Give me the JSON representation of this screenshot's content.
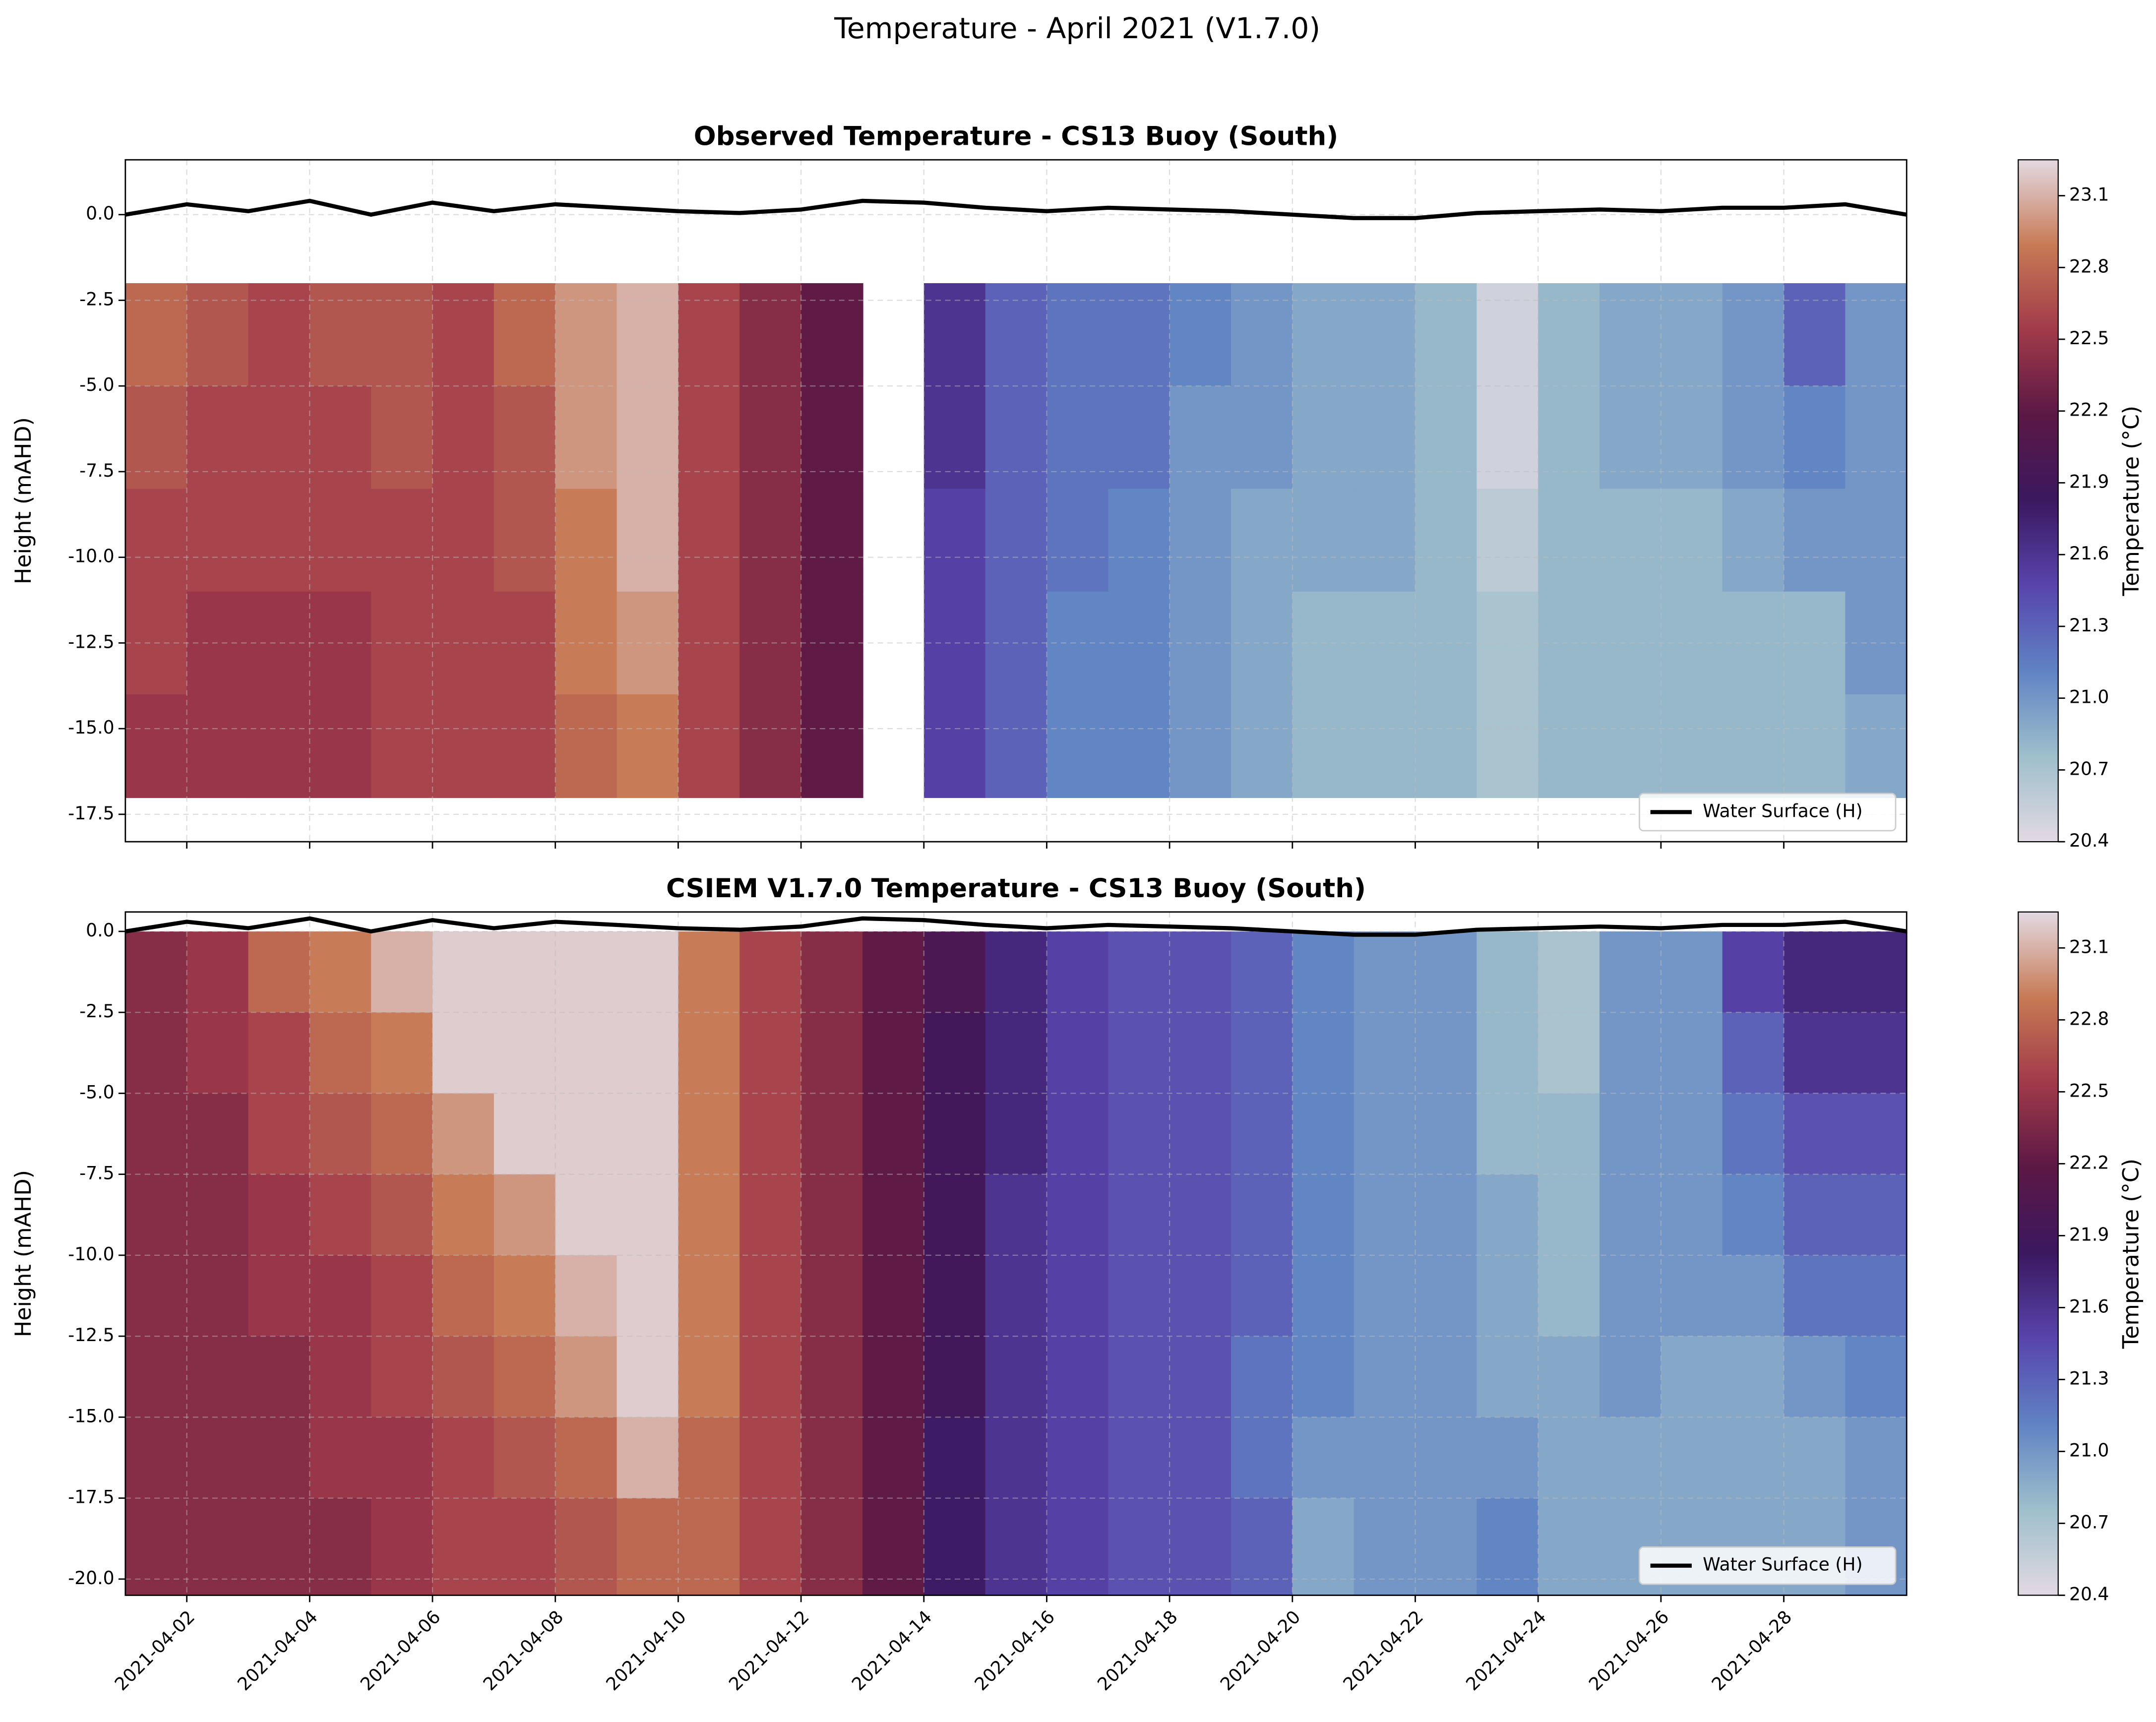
{
  "title": "Temperature - April 2021 (V1.7.0)",
  "chart_data": [
    {
      "type": "heatmap",
      "title": "Observed Temperature - CS13 Buoy (South)",
      "ylabel": "Height (mAHD)",
      "x": [
        "2021-04-01",
        "2021-04-02",
        "2021-04-03",
        "2021-04-04",
        "2021-04-05",
        "2021-04-06",
        "2021-04-07",
        "2021-04-08",
        "2021-04-09",
        "2021-04-10",
        "2021-04-11",
        "2021-04-12",
        "2021-04-13",
        "2021-04-14",
        "2021-04-15",
        "2021-04-16",
        "2021-04-17",
        "2021-04-18",
        "2021-04-19",
        "2021-04-20",
        "2021-04-21",
        "2021-04-22",
        "2021-04-23",
        "2021-04-24",
        "2021-04-25",
        "2021-04-26",
        "2021-04-27",
        "2021-04-28",
        "2021-04-29"
      ],
      "y_edges": [
        -2,
        -5,
        -8,
        -11,
        -14,
        -17
      ],
      "z": [
        [
          22.8,
          22.7,
          22.6,
          22.7,
          22.7,
          22.6,
          22.8,
          23.0,
          23.1,
          22.6,
          22.4,
          22.2,
          null,
          21.6,
          21.3,
          21.2,
          21.2,
          21.1,
          21.0,
          20.9,
          20.9,
          20.8,
          20.5,
          20.8,
          20.9,
          20.9,
          21.0,
          21.3,
          21.0
        ],
        [
          22.7,
          22.6,
          22.6,
          22.6,
          22.7,
          22.6,
          22.7,
          23.0,
          23.1,
          22.6,
          22.4,
          22.2,
          null,
          21.6,
          21.3,
          21.2,
          21.2,
          21.0,
          21.0,
          20.9,
          20.9,
          20.8,
          20.5,
          20.8,
          20.9,
          20.9,
          21.0,
          21.1,
          21.0
        ],
        [
          22.6,
          22.6,
          22.6,
          22.6,
          22.6,
          22.6,
          22.7,
          22.9,
          23.1,
          22.6,
          22.4,
          22.2,
          null,
          21.5,
          21.3,
          21.2,
          21.1,
          21.0,
          20.9,
          20.9,
          20.9,
          20.8,
          20.6,
          20.8,
          20.8,
          20.8,
          20.9,
          21.0,
          21.0
        ],
        [
          22.6,
          22.5,
          22.5,
          22.5,
          22.6,
          22.6,
          22.6,
          22.9,
          23.0,
          22.6,
          22.4,
          22.2,
          null,
          21.5,
          21.3,
          21.1,
          21.1,
          21.0,
          20.9,
          20.8,
          20.8,
          20.8,
          20.7,
          20.8,
          20.8,
          20.8,
          20.8,
          20.8,
          21.0
        ],
        [
          22.5,
          22.5,
          22.5,
          22.5,
          22.6,
          22.6,
          22.6,
          22.8,
          22.9,
          22.6,
          22.4,
          22.2,
          null,
          21.5,
          21.3,
          21.1,
          21.1,
          21.0,
          20.9,
          20.8,
          20.8,
          20.8,
          20.7,
          20.8,
          20.8,
          20.8,
          20.8,
          20.8,
          20.9
        ]
      ],
      "xlim": [
        "2021-04-01",
        "2021-04-30"
      ],
      "xticks": [
        "2021-04-02",
        "2021-04-04",
        "2021-04-06",
        "2021-04-08",
        "2021-04-10",
        "2021-04-12",
        "2021-04-14",
        "2021-04-16",
        "2021-04-18",
        "2021-04-20",
        "2021-04-22",
        "2021-04-24",
        "2021-04-26",
        "2021-04-28"
      ],
      "ylim": [
        -18.3,
        1.6
      ],
      "yticks": [
        {
          "value": 0,
          "label": "0.0"
        },
        -2.5,
        {
          "value": -5,
          "label": "-5.0"
        },
        -7.5,
        {
          "value": -10,
          "label": "-10.0"
        },
        -12.5,
        {
          "value": -15,
          "label": "-15.0"
        },
        -17.5
      ],
      "clim": [
        20.4,
        23.25
      ],
      "cticks": [
        20.4,
        20.7,
        {
          "value": 21,
          "label": "21.0"
        },
        21.3,
        21.6,
        21.9,
        22.2,
        22.5,
        22.8,
        23.1
      ],
      "clabel": "Temperature (°C)",
      "colormap": [
        "#e2d9e2",
        "#9ebfcb",
        "#6083c4",
        "#5845ad",
        "#3b1860",
        "#5b1845",
        "#a13a4a",
        "#c77a55",
        "#e2d9e2"
      ],
      "grid": true,
      "legend": "lower right",
      "surface": {
        "name": "Water Surface (H)",
        "color": "#000000",
        "x": [
          "2021-04-01",
          "2021-04-02",
          "2021-04-03",
          "2021-04-04",
          "2021-04-05",
          "2021-04-06",
          "2021-04-07",
          "2021-04-08",
          "2021-04-09",
          "2021-04-10",
          "2021-04-11",
          "2021-04-12",
          "2021-04-13",
          "2021-04-14",
          "2021-04-15",
          "2021-04-16",
          "2021-04-17",
          "2021-04-18",
          "2021-04-19",
          "2021-04-20",
          "2021-04-21",
          "2021-04-22",
          "2021-04-23",
          "2021-04-24",
          "2021-04-25",
          "2021-04-26",
          "2021-04-27",
          "2021-04-28",
          "2021-04-29",
          "2021-04-30"
        ],
        "values": [
          0.0,
          0.3,
          0.1,
          0.4,
          0.0,
          0.35,
          0.1,
          0.3,
          0.2,
          0.1,
          0.05,
          0.15,
          0.4,
          0.35,
          0.2,
          0.1,
          0.2,
          0.15,
          0.1,
          0.0,
          -0.1,
          -0.1,
          0.05,
          0.1,
          0.15,
          0.1,
          0.2,
          0.2,
          0.3,
          0.0
        ]
      }
    },
    {
      "type": "heatmap",
      "title": "CSIEM V1.7.0 Temperature - CS13 Buoy (South)",
      "ylabel": "Height (mAHD)",
      "x": [
        "2021-04-01",
        "2021-04-02",
        "2021-04-03",
        "2021-04-04",
        "2021-04-05",
        "2021-04-06",
        "2021-04-07",
        "2021-04-08",
        "2021-04-09",
        "2021-04-10",
        "2021-04-11",
        "2021-04-12",
        "2021-04-13",
        "2021-04-14",
        "2021-04-15",
        "2021-04-16",
        "2021-04-17",
        "2021-04-18",
        "2021-04-19",
        "2021-04-20",
        "2021-04-21",
        "2021-04-22",
        "2021-04-23",
        "2021-04-24",
        "2021-04-25",
        "2021-04-26",
        "2021-04-27",
        "2021-04-28",
        "2021-04-29"
      ],
      "y_edges": [
        0,
        -2.5,
        -5,
        -7.5,
        -10,
        -12.5,
        -15,
        -17.5,
        -20.5
      ],
      "z": [
        [
          22.4,
          22.5,
          22.8,
          22.9,
          23.1,
          23.2,
          23.2,
          23.2,
          23.2,
          22.9,
          22.6,
          22.4,
          22.2,
          22.0,
          21.7,
          21.5,
          21.4,
          21.4,
          21.3,
          21.1,
          21.0,
          21.0,
          20.8,
          20.7,
          21.0,
          21.0,
          21.5,
          21.7,
          21.7
        ],
        [
          22.4,
          22.5,
          22.6,
          22.8,
          22.9,
          23.2,
          23.2,
          23.2,
          23.2,
          22.9,
          22.6,
          22.4,
          22.2,
          21.9,
          21.7,
          21.5,
          21.4,
          21.4,
          21.3,
          21.1,
          21.0,
          21.0,
          20.8,
          20.7,
          21.0,
          21.0,
          21.3,
          21.6,
          21.6
        ],
        [
          22.4,
          22.4,
          22.6,
          22.7,
          22.8,
          23.0,
          23.2,
          23.2,
          23.2,
          22.9,
          22.6,
          22.4,
          22.2,
          21.9,
          21.7,
          21.5,
          21.4,
          21.4,
          21.3,
          21.1,
          21.0,
          21.0,
          20.8,
          20.8,
          21.0,
          21.0,
          21.2,
          21.4,
          21.4
        ],
        [
          22.4,
          22.4,
          22.5,
          22.6,
          22.7,
          22.9,
          23.0,
          23.2,
          23.2,
          22.9,
          22.6,
          22.4,
          22.2,
          21.9,
          21.6,
          21.5,
          21.4,
          21.4,
          21.3,
          21.1,
          21.0,
          21.0,
          20.9,
          20.8,
          21.0,
          21.0,
          21.1,
          21.3,
          21.3
        ],
        [
          22.4,
          22.4,
          22.5,
          22.5,
          22.6,
          22.8,
          22.9,
          23.1,
          23.2,
          22.9,
          22.6,
          22.4,
          22.2,
          21.9,
          21.6,
          21.5,
          21.4,
          21.4,
          21.3,
          21.1,
          21.0,
          21.0,
          20.9,
          20.8,
          21.0,
          21.0,
          21.0,
          21.2,
          21.2
        ],
        [
          22.4,
          22.4,
          22.4,
          22.5,
          22.6,
          22.7,
          22.8,
          23.0,
          23.2,
          22.9,
          22.6,
          22.4,
          22.2,
          21.9,
          21.6,
          21.5,
          21.4,
          21.4,
          21.2,
          21.1,
          21.0,
          21.0,
          20.9,
          20.9,
          21.0,
          20.9,
          20.9,
          21.0,
          21.1
        ],
        [
          22.4,
          22.4,
          22.4,
          22.5,
          22.5,
          22.6,
          22.7,
          22.8,
          23.1,
          22.8,
          22.6,
          22.4,
          22.2,
          21.8,
          21.6,
          21.5,
          21.4,
          21.4,
          21.2,
          21.0,
          21.0,
          21.0,
          21.0,
          20.9,
          20.9,
          20.9,
          20.9,
          20.9,
          21.0
        ],
        [
          22.4,
          22.4,
          22.4,
          22.4,
          22.5,
          22.6,
          22.6,
          22.7,
          22.8,
          22.8,
          22.6,
          22.4,
          22.2,
          21.8,
          21.6,
          21.5,
          21.4,
          21.4,
          21.3,
          20.9,
          21.0,
          21.0,
          21.1,
          20.9,
          20.9,
          20.9,
          20.9,
          20.9,
          21.0
        ]
      ],
      "xlim": [
        "2021-04-01",
        "2021-04-30"
      ],
      "xticks": [
        "2021-04-02",
        "2021-04-04",
        "2021-04-06",
        "2021-04-08",
        "2021-04-10",
        "2021-04-12",
        "2021-04-14",
        "2021-04-16",
        "2021-04-18",
        "2021-04-20",
        "2021-04-22",
        "2021-04-24",
        "2021-04-26",
        "2021-04-28"
      ],
      "ylim": [
        -20.5,
        0.6
      ],
      "yticks": [
        {
          "value": 0,
          "label": "0.0"
        },
        -2.5,
        {
          "value": -5,
          "label": "-5.0"
        },
        -7.5,
        {
          "value": -10,
          "label": "-10.0"
        },
        -12.5,
        {
          "value": -15,
          "label": "-15.0"
        },
        -17.5,
        {
          "value": -20,
          "label": "-20.0"
        }
      ],
      "clim": [
        20.4,
        23.25
      ],
      "cticks": [
        20.4,
        20.7,
        {
          "value": 21,
          "label": "21.0"
        },
        21.3,
        21.6,
        21.9,
        22.2,
        22.5,
        22.8,
        23.1
      ],
      "clabel": "Temperature (°C)",
      "colormap": [
        "#e2d9e2",
        "#9ebfcb",
        "#6083c4",
        "#5845ad",
        "#3b1860",
        "#5b1845",
        "#a13a4a",
        "#c77a55",
        "#e2d9e2"
      ],
      "grid": true,
      "legend": "lower right",
      "surface": {
        "name": "Water Surface (H)",
        "color": "#000000",
        "x": [
          "2021-04-01",
          "2021-04-02",
          "2021-04-03",
          "2021-04-04",
          "2021-04-05",
          "2021-04-06",
          "2021-04-07",
          "2021-04-08",
          "2021-04-09",
          "2021-04-10",
          "2021-04-11",
          "2021-04-12",
          "2021-04-13",
          "2021-04-14",
          "2021-04-15",
          "2021-04-16",
          "2021-04-17",
          "2021-04-18",
          "2021-04-19",
          "2021-04-20",
          "2021-04-21",
          "2021-04-22",
          "2021-04-23",
          "2021-04-24",
          "2021-04-25",
          "2021-04-26",
          "2021-04-27",
          "2021-04-28",
          "2021-04-29",
          "2021-04-30"
        ],
        "values": [
          0.0,
          0.3,
          0.1,
          0.4,
          0.0,
          0.35,
          0.1,
          0.3,
          0.2,
          0.1,
          0.05,
          0.15,
          0.4,
          0.35,
          0.2,
          0.1,
          0.2,
          0.15,
          0.1,
          0.0,
          -0.1,
          -0.1,
          0.05,
          0.1,
          0.15,
          0.1,
          0.2,
          0.2,
          0.3,
          0.0
        ]
      }
    }
  ]
}
